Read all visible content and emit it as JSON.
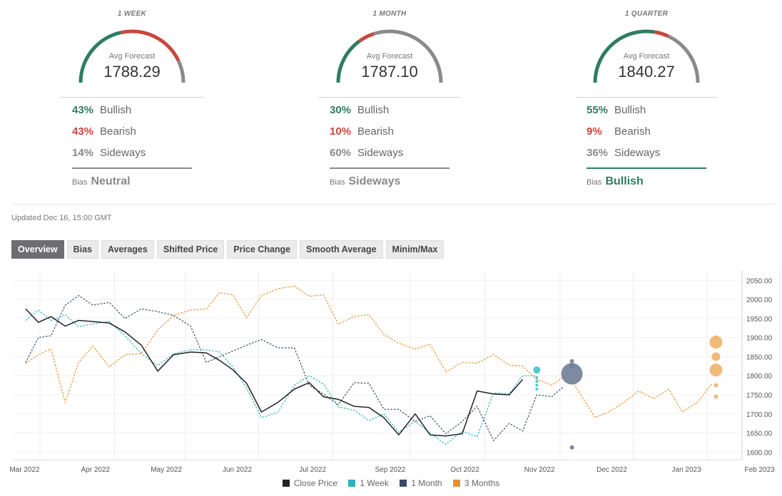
{
  "forecasts": [
    {
      "period": "1 WEEK",
      "avg_label": "Avg Forecast",
      "avg": "1788.29",
      "bullish_pct": "43%",
      "bullish_label": "Bullish",
      "bearish_pct": "43%",
      "bearish_label": "Bearish",
      "sideways_pct": "14%",
      "sideways_label": "Sideways",
      "bias_label": "Bias",
      "bias_value": "Neutral",
      "bias_color": "#8a8a8a",
      "gauge": {
        "bullish": 0.43,
        "bearish": 0.43,
        "sideways": 0.14
      }
    },
    {
      "period": "1 MONTH",
      "avg_label": "Avg Forecast",
      "avg": "1787.10",
      "bullish_pct": "30%",
      "bullish_label": "Bullish",
      "bearish_pct": "10%",
      "bearish_label": "Bearish",
      "sideways_pct": "60%",
      "sideways_label": "Sideways",
      "bias_label": "Bias",
      "bias_value": "Sideways",
      "bias_color": "#8a8a8a",
      "gauge": {
        "bullish": 0.3,
        "bearish": 0.1,
        "sideways": 0.6
      }
    },
    {
      "period": "1 QUARTER",
      "avg_label": "Avg Forecast",
      "avg": "1840.27",
      "bullish_pct": "55%",
      "bullish_label": "Bullish",
      "bearish_pct": "9%",
      "bearish_label": "Bearish",
      "sideways_pct": "36%",
      "sideways_label": "Sideways",
      "bias_label": "Bias",
      "bias_value": "Bullish",
      "bias_color": "#2e7d62",
      "gauge": {
        "bullish": 0.55,
        "bearish": 0.09,
        "sideways": 0.36
      }
    }
  ],
  "colors": {
    "bullish": "#2e7d62",
    "bearish": "#c8473d",
    "sideways": "#8a8a8a"
  },
  "updated": "Updated Dec 16, 15:00 GMT",
  "tabs": [
    "Overview",
    "Bias",
    "Averages",
    "Shifted Price",
    "Price Change",
    "Smooth Average",
    "Minim/Max"
  ],
  "active_tab": 0,
  "chart_data": {
    "type": "line",
    "x_labels": [
      "Mar 2022",
      "Apr 2022",
      "May 2022",
      "Jun 2022",
      "Jul 2022",
      "Sep 2022",
      "Oct 2022",
      "Nov 2022",
      "Dec 2022",
      "Jan 2023",
      "Feb 2023"
    ],
    "y_ticks": [
      "1600.00",
      "1650.00",
      "1700.00",
      "1750.00",
      "1800.00",
      "1850.00",
      "1900.00",
      "1950.00",
      "2000.00",
      "2050.00"
    ],
    "ylim": [
      1580,
      2075
    ],
    "series": [
      {
        "name": "Close Price",
        "color": "#222222",
        "dashed": false,
        "x": [
          1.0,
          1.17,
          1.34,
          1.53,
          1.71,
          1.9,
          2.12,
          2.33,
          2.55,
          2.77,
          2.98,
          3.21,
          3.42,
          3.6,
          3.78,
          3.96,
          4.16,
          4.38,
          4.6,
          4.8,
          4.99,
          5.19,
          5.4,
          5.6,
          5.8,
          6.0,
          6.22,
          6.42,
          6.63,
          6.85,
          7.05,
          7.27,
          7.48,
          7.66
        ],
        "y": [
          1975,
          1940,
          1955,
          1930,
          1945,
          1942,
          1938,
          1915,
          1880,
          1812,
          1855,
          1862,
          1860,
          1840,
          1815,
          1780,
          1705,
          1730,
          1765,
          1782,
          1745,
          1738,
          1720,
          1717,
          1690,
          1645,
          1700,
          1645,
          1642,
          1648,
          1760,
          1752,
          1750,
          1790
        ]
      },
      {
        "name": "1 Week",
        "color": "#2bb3bf",
        "dashed": true,
        "x": [
          1.0,
          1.17,
          1.34,
          1.53,
          1.71,
          1.9,
          2.12,
          2.33,
          2.55,
          2.77,
          2.98,
          3.21,
          3.42,
          3.6,
          3.78,
          3.96,
          4.16,
          4.38,
          4.6,
          4.8,
          4.99,
          5.19,
          5.4,
          5.6,
          5.8,
          6.0,
          6.22,
          6.42,
          6.63,
          6.85,
          7.05,
          7.27,
          7.48,
          7.66,
          7.85
        ],
        "y": [
          1945,
          1972,
          1945,
          1960,
          1928,
          1936,
          1942,
          1905,
          1858,
          1827,
          1857,
          1868,
          1868,
          1862,
          1822,
          1768,
          1690,
          1704,
          1775,
          1800,
          1778,
          1718,
          1710,
          1682,
          1700,
          1652,
          1680,
          1650,
          1620,
          1655,
          1640,
          1755,
          1752,
          1800,
          1800
        ]
      },
      {
        "name": "1 Month",
        "color": "#3a4a66",
        "dashed": true,
        "x": [
          1.0,
          1.17,
          1.34,
          1.53,
          1.71,
          1.9,
          2.12,
          2.33,
          2.55,
          2.77,
          2.98,
          3.21,
          3.42,
          3.6,
          3.78,
          3.96,
          4.16,
          4.38,
          4.6,
          4.8,
          4.99,
          5.19,
          5.4,
          5.6,
          5.8,
          6.0,
          6.22,
          6.42,
          6.63,
          6.85,
          7.05,
          7.27,
          7.48,
          7.66,
          7.85,
          8.05,
          8.2
        ],
        "y": [
          1835,
          1900,
          1905,
          1985,
          2010,
          1985,
          1992,
          1950,
          1975,
          1968,
          1958,
          1930,
          1835,
          1850,
          1865,
          1880,
          1895,
          1873,
          1873,
          1775,
          1752,
          1724,
          1782,
          1780,
          1712,
          1712,
          1680,
          1695,
          1648,
          1680,
          1720,
          1630,
          1675,
          1655,
          1750,
          1745,
          1770
        ]
      },
      {
        "name": "3 Months",
        "color": "#e98f2a",
        "dashed": true,
        "x": [
          1.0,
          1.17,
          1.34,
          1.53,
          1.71,
          1.9,
          2.12,
          2.33,
          2.55,
          2.77,
          2.98,
          3.21,
          3.42,
          3.6,
          3.78,
          3.96,
          4.16,
          4.38,
          4.6,
          4.8,
          4.99,
          5.19,
          5.4,
          5.6,
          5.8,
          6.0,
          6.22,
          6.42,
          6.63,
          6.85,
          7.05,
          7.27,
          7.48,
          7.66,
          7.85,
          8.05,
          8.26,
          8.44,
          8.63,
          8.81,
          9.02,
          9.21,
          9.42,
          9.62,
          9.8,
          10.0,
          10.2
        ],
        "y": [
          1833,
          1855,
          1870,
          1730,
          1835,
          1878,
          1823,
          1855,
          1858,
          1920,
          1958,
          1972,
          1975,
          2018,
          2012,
          1952,
          2010,
          2028,
          2035,
          2008,
          2012,
          1935,
          1955,
          1960,
          1908,
          1885,
          1870,
          1883,
          1810,
          1835,
          1833,
          1855,
          1828,
          1825,
          1790,
          1775,
          1805,
          1750,
          1690,
          1705,
          1730,
          1760,
          1740,
          1765,
          1705,
          1730,
          1780
        ]
      }
    ],
    "forecast_points": [
      {
        "series": "1 Week",
        "x": 7.85,
        "y": 1815,
        "r": 5,
        "color": "#3fc1cb"
      },
      {
        "series": "1 Week",
        "x": 7.85,
        "y": 1795,
        "r": 2,
        "color": "#3fc1cb"
      },
      {
        "series": "1 Week",
        "x": 7.85,
        "y": 1785,
        "r": 2,
        "color": "#3fc1cb"
      },
      {
        "series": "1 Week",
        "x": 7.85,
        "y": 1775,
        "r": 2,
        "color": "#3fc1cb"
      },
      {
        "series": "1 Week",
        "x": 7.85,
        "y": 1765,
        "r": 2,
        "color": "#3fc1cb"
      },
      {
        "series": "1 Month",
        "x": 8.32,
        "y": 1805,
        "r": 15,
        "color": "#6f7f99"
      },
      {
        "series": "1 Month",
        "x": 8.32,
        "y": 1825,
        "r": 4,
        "color": "#6f7f99"
      },
      {
        "series": "1 Month",
        "x": 8.32,
        "y": 1838,
        "r": 3,
        "color": "#6f7f99"
      },
      {
        "series": "1 Month",
        "x": 8.32,
        "y": 1612,
        "r": 3,
        "color": "#6f7f99"
      },
      {
        "series": "3 Months",
        "x": 10.25,
        "y": 1888,
        "r": 9,
        "color": "#f0b26a"
      },
      {
        "series": "3 Months",
        "x": 10.25,
        "y": 1850,
        "r": 6,
        "color": "#f0b26a"
      },
      {
        "series": "3 Months",
        "x": 10.25,
        "y": 1815,
        "r": 9,
        "color": "#f0b26a"
      },
      {
        "series": "3 Months",
        "x": 10.25,
        "y": 1900,
        "r": 3,
        "color": "#f0b26a"
      },
      {
        "series": "3 Months",
        "x": 10.25,
        "y": 1775,
        "r": 3,
        "color": "#f0b26a"
      },
      {
        "series": "3 Months",
        "x": 10.25,
        "y": 1745,
        "r": 3,
        "color": "#f0b26a"
      }
    ],
    "legend": [
      {
        "label": "Close Price",
        "color": "#222222"
      },
      {
        "label": "1 Week",
        "color": "#2bb3bf"
      },
      {
        "label": "1 Month",
        "color": "#3a4a66"
      },
      {
        "label": "3 Months",
        "color": "#e98f2a"
      }
    ]
  }
}
